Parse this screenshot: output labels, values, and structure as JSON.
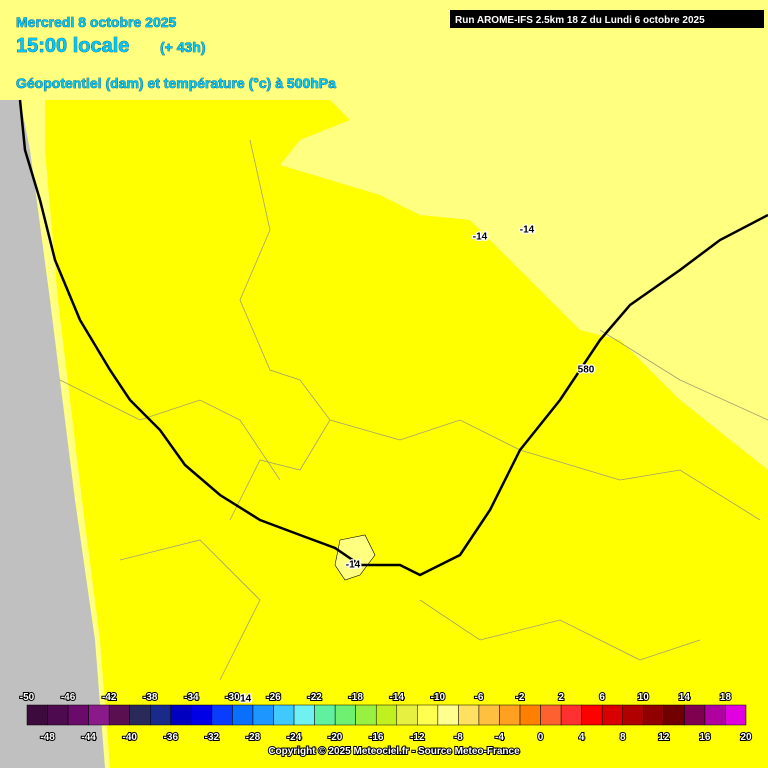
{
  "header": {
    "date": "Mercredi 8 octobre 2025",
    "time": "15:00 locale",
    "lead": "(+ 43h)",
    "field": "Géopotentiel (dam) et température (°c) à 500hPa",
    "run": "Run AROME-IFS 2.5km 18 Z du Lundi 6 octobre 2025"
  },
  "map": {
    "contour_labels": [
      "-14",
      "-14",
      "580",
      "-14",
      "-14"
    ]
  },
  "legend": {
    "ticks": [
      -50,
      -48,
      -46,
      -44,
      -42,
      -40,
      -38,
      -36,
      -34,
      -32,
      -30,
      -28,
      -26,
      -24,
      -22,
      -20,
      -18,
      -16,
      -14,
      -12,
      -10,
      -8,
      -6,
      -4,
      -2,
      0,
      2,
      4,
      6,
      8,
      10,
      12,
      14,
      16,
      18,
      20
    ],
    "colors": [
      "#3c0a3c",
      "#4e0a4e",
      "#6a0a6a",
      "#8a1a8a",
      "#5a1050",
      "#2a2a5a",
      "#1a2a8a",
      "#0000c0",
      "#0000e6",
      "#0a3cff",
      "#0a6eff",
      "#1e96ff",
      "#40c8ff",
      "#70f0f0",
      "#60f0a0",
      "#70f070",
      "#98f040",
      "#c0f020",
      "#e6f040",
      "#ffff50",
      "#ffff90",
      "#ffe060",
      "#ffc040",
      "#ffa020",
      "#ff8000",
      "#ff6030",
      "#ff3030",
      "#ff0000",
      "#d80000",
      "#b00000",
      "#900000",
      "#700000",
      "#800050",
      "#b000a0",
      "#e000e0"
    ]
  },
  "footer": {
    "copyright": "Copyright © 2025 Meteociel.fr - Source Meteo-France"
  }
}
